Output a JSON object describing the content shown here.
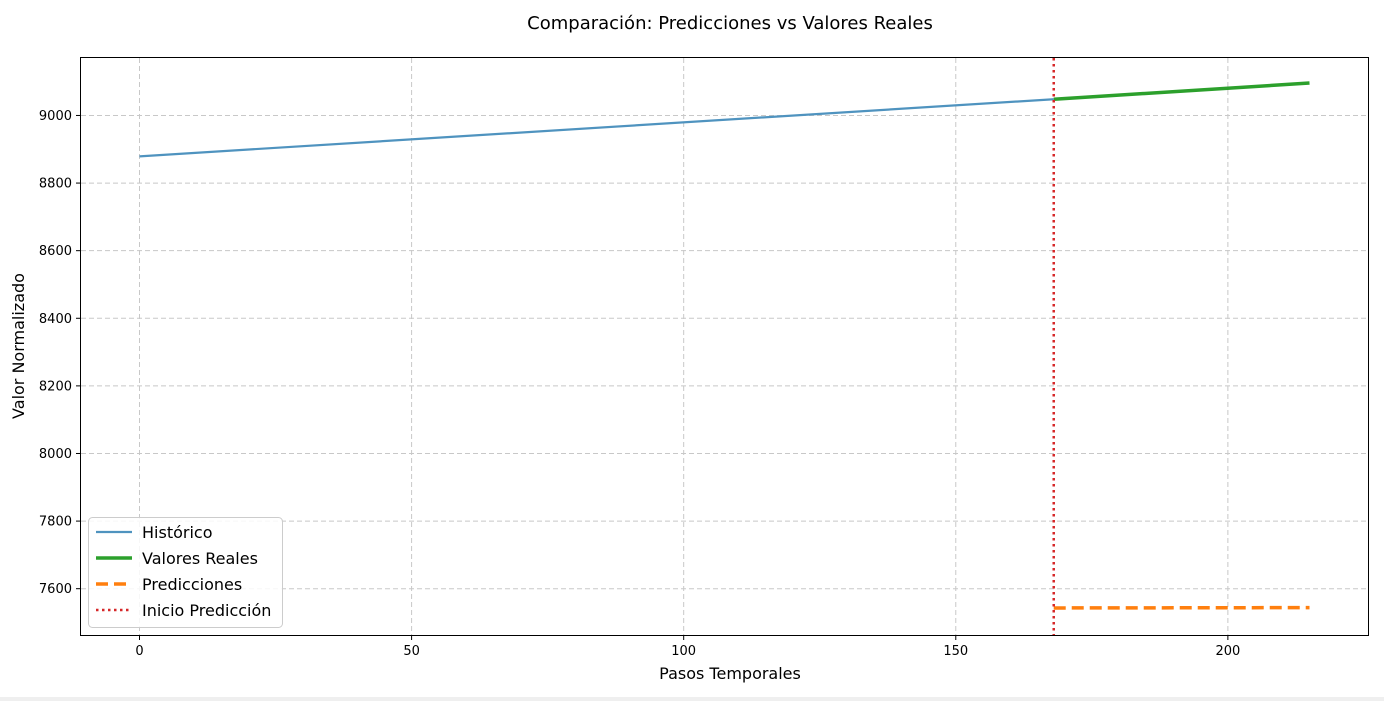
{
  "chart_data": {
    "type": "line",
    "title": "Comparación: Predicciones vs Valores Reales",
    "xlabel": "Pasos Temporales",
    "ylabel": "Valor Normalizado",
    "xlim": [
      -10.75,
      225.75
    ],
    "ylim": [
      7463,
      9170
    ],
    "xticks": [
      0,
      50,
      100,
      150,
      200
    ],
    "yticks": [
      7600,
      7800,
      8000,
      8200,
      8400,
      8600,
      8800,
      9000
    ],
    "grid": true,
    "legend_position": "lower-left",
    "series": [
      {
        "name": "Histórico",
        "color": "#4f93bf",
        "style": "solid",
        "width": 2.2,
        "x": [
          0,
          168
        ],
        "y": [
          8879,
          9048
        ]
      },
      {
        "name": "Valores Reales",
        "color": "#2ca02c",
        "style": "solid",
        "width": 3.5,
        "x": [
          168,
          215
        ],
        "y": [
          9048,
          9096
        ]
      },
      {
        "name": "Predicciones",
        "color": "#ff7f0e",
        "style": "dashed",
        "width": 3.5,
        "x": [
          168,
          215
        ],
        "y": [
          7543,
          7544
        ]
      }
    ],
    "vline": {
      "name": "Inicio Predicción",
      "x": 168,
      "color": "#d62728",
      "style": "dotted"
    }
  }
}
